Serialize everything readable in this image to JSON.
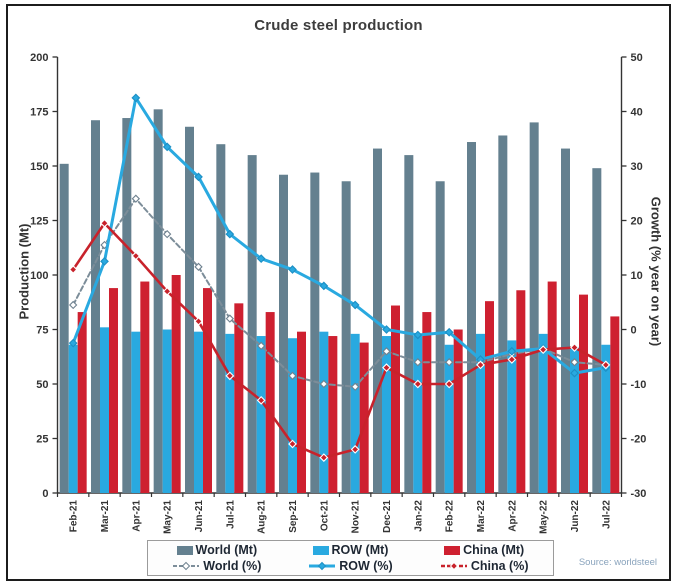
{
  "figure": {
    "source": "Source: worldsteel"
  },
  "chart_data": {
    "type": "bar+line combo (bars on left axis, lines on right axis)",
    "title": "Crude steel production",
    "categories": [
      "Feb-21",
      "Mar-21",
      "Apr-21",
      "May-21",
      "Jun-21",
      "Jul-21",
      "Aug-21",
      "Sep-21",
      "Oct-21",
      "Nov-21",
      "Dec-21",
      "Jan-22",
      "Feb-22",
      "Mar-22",
      "Apr-22",
      "May-22",
      "Jun-22",
      "Jul-22"
    ],
    "bar_series": [
      {
        "name": "World (Mt)",
        "axis": "left",
        "color": "#64808F",
        "values": [
          151,
          171,
          172,
          176,
          168,
          160,
          155,
          146,
          147,
          143,
          158,
          155,
          143,
          161,
          164,
          170,
          158,
          149
        ]
      },
      {
        "name": "ROW (Mt)",
        "axis": "left",
        "color": "#29A9E0",
        "values": [
          68,
          76,
          74,
          75,
          74,
          73,
          72,
          71,
          74,
          73,
          72,
          72,
          68,
          73,
          70,
          73,
          67,
          68
        ]
      },
      {
        "name": "China (Mt)",
        "axis": "left",
        "color": "#CE2030",
        "values": [
          83,
          94,
          97,
          100,
          94,
          87,
          83,
          74,
          72,
          69,
          86,
          83,
          75,
          88,
          93,
          97,
          91,
          81
        ]
      }
    ],
    "line_series": [
      {
        "name": "World (%)",
        "axis": "right",
        "color": "#7C8D99",
        "dashed": true,
        "values": [
          4.5,
          15.5,
          24,
          17.5,
          11.5,
          2,
          -3,
          -8.5,
          -10,
          -10.5,
          -4,
          -6,
          -6,
          -6,
          -4.5,
          -3.5,
          -6,
          -6.5
        ]
      },
      {
        "name": "ROW (%)",
        "axis": "right",
        "color": "#29A9E0",
        "dashed": false,
        "values": [
          -2.5,
          12.5,
          42.5,
          33.5,
          28,
          17.5,
          13,
          11,
          8,
          4.5,
          0,
          -1,
          -0.5,
          -5.5,
          -4,
          -3.5,
          -8,
          -7
        ]
      },
      {
        "name": "China (%)",
        "axis": "right",
        "color": "#C8222B",
        "dashed": true,
        "values": [
          11,
          19.5,
          13.5,
          7,
          1.5,
          -8.5,
          -13,
          -21,
          -23.5,
          -22,
          -7,
          -10,
          -10,
          -6.5,
          -5.5,
          -3.7,
          -3.3,
          -6.5
        ]
      }
    ],
    "left_axis": {
      "label": "Production (Mt)",
      "min": 0,
      "max": 200,
      "ticks": [
        0,
        25,
        50,
        75,
        100,
        125,
        150,
        175,
        200
      ]
    },
    "right_axis": {
      "label": "Growth (% year on year)",
      "min": -30,
      "max": 50,
      "ticks": [
        -30,
        -20,
        -10,
        0,
        10,
        20,
        30,
        40,
        50
      ]
    },
    "grid": false,
    "legend_position": "bottom"
  }
}
